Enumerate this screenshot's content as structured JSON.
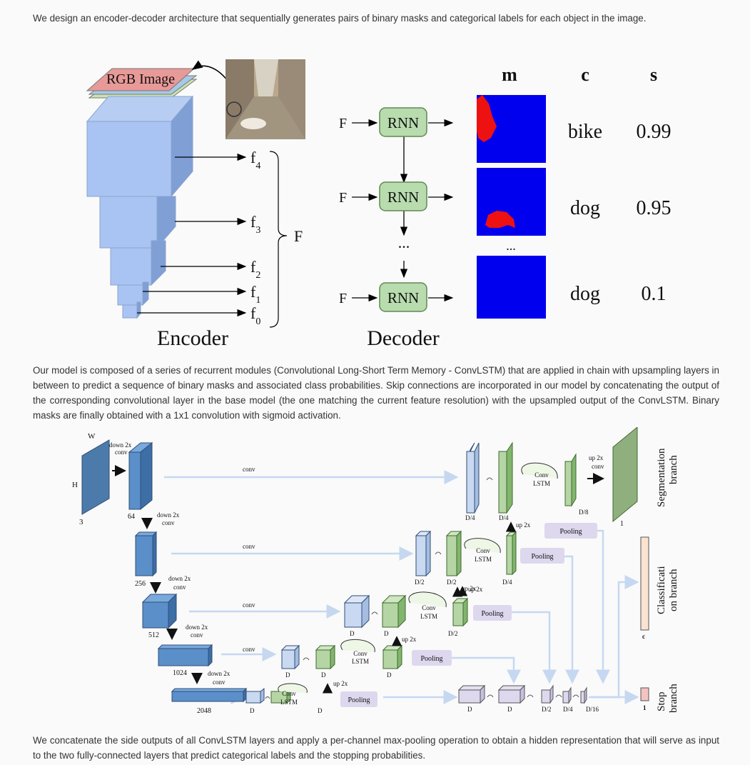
{
  "paragraphs": {
    "p1": "We design an encoder-decoder architecture that sequentially generates pairs of binary masks and categorical labels for each object in the image.",
    "p2": "Our model is composed of a series of recurrent modules (Convolutional Long-Short Term Memory - ConvLSTM) that are applied in chain with upsampling layers in between to predict a sequence of binary masks and associated class probabilities. Skip connections are incorporated in our model by concatenating the output of the corresponding convolutional layer in the base model (the one matching the current feature resolution) with the upsampled output of the ConvLSTM. Binary masks are finally obtained with a 1x1 convolution with sigmoid activation.",
    "p3": "We concatenate the side outputs of all ConvLSTM layers and apply a per-channel max-pooling operation to obtain a hidden representation that will serve as input to the two fully-connected layers that predict categorical labels and the stopping probabilities."
  },
  "figure1": {
    "rgb_label": "RGB Image",
    "encoder_label": "Encoder",
    "decoder_label": "Decoder",
    "feature_labels": [
      "f4",
      "f3",
      "f2",
      "f1",
      "f0"
    ],
    "feature_main": "f",
    "feature_subs": [
      "4",
      "3",
      "2",
      "1",
      "0"
    ],
    "F": "F",
    "rnn_label": "RNN",
    "dots": "...",
    "col_m": "m",
    "col_c": "c",
    "col_s": "s",
    "rows": [
      {
        "c": "bike",
        "s": "0.99"
      },
      {
        "c": "dog",
        "s": "0.95"
      },
      {
        "c": "dog",
        "s": "0.1"
      }
    ],
    "colors": {
      "mask_bg": "#0000ee",
      "mask_fg": "#ee1111",
      "rnn": "#b8dcae",
      "encoder": "#a9c4f2"
    }
  },
  "figure2": {
    "W": "W",
    "H": "H",
    "three": "3",
    "down2x": "down 2x",
    "conv": "conv",
    "ch64": "64",
    "ch256": "256",
    "ch512": "512",
    "ch1024": "1024",
    "ch2048": "2048",
    "D": "D",
    "D2": "D/2",
    "D4": "D/4",
    "D8": "D/8",
    "D16": "D/16",
    "conv_lstm_1": "Conv",
    "conv_lstm_2": "LSTM",
    "up2x": "up 2x",
    "pooling": "Pooling",
    "one": "1",
    "c": "c",
    "seg1": "Segmentation",
    "seg2": "branch",
    "cls1": "Classificati",
    "cls2": "on branch",
    "stop1": "Stop",
    "stop2": "branch",
    "colors": {
      "blue": "#5b8fc9",
      "green": "#9ec88a",
      "pooling": "#ddd8ee",
      "arrow": "#c6d8f0"
    }
  }
}
